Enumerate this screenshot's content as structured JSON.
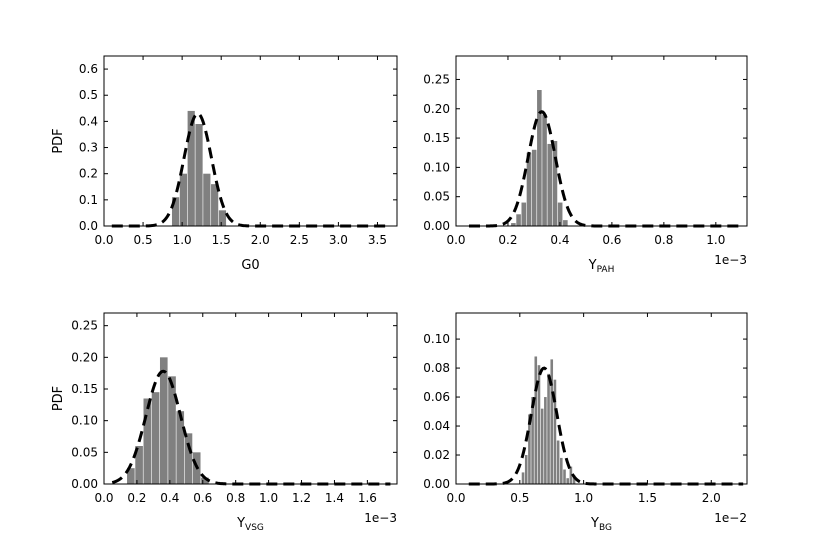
{
  "chart_data": [
    {
      "type": "bar",
      "panel": "top-left",
      "xlabel": "G0",
      "xlabel_sub": "",
      "ylabel": "PDF",
      "offset_text": "",
      "xlim": [
        0,
        3.75
      ],
      "ylim": [
        0,
        0.65
      ],
      "xticks": [
        "0.0",
        "0.5",
        "1.0",
        "1.5",
        "2.0",
        "2.5",
        "3.0",
        "3.5"
      ],
      "xtick_values": [
        0,
        0.5,
        1.0,
        1.5,
        2.0,
        2.5,
        3.0,
        3.5
      ],
      "yticks": [
        "0.0",
        "0.1",
        "0.2",
        "0.3",
        "0.4",
        "0.5",
        "0.6"
      ],
      "ytick_values": [
        0,
        0.1,
        0.2,
        0.3,
        0.4,
        0.5,
        0.6
      ],
      "bins": [
        {
          "x0": 0.87,
          "x1": 0.97,
          "y": 0.11
        },
        {
          "x0": 0.97,
          "x1": 1.07,
          "y": 0.2
        },
        {
          "x0": 1.07,
          "x1": 1.17,
          "y": 0.44
        },
        {
          "x0": 1.17,
          "x1": 1.27,
          "y": 0.39
        },
        {
          "x0": 1.27,
          "x1": 1.37,
          "y": 0.2
        },
        {
          "x0": 1.37,
          "x1": 1.47,
          "y": 0.16
        },
        {
          "x0": 1.47,
          "x1": 1.57,
          "y": 0.06
        }
      ],
      "fit_curve": {
        "mean": 1.2,
        "sigma": 0.175,
        "peak": 0.43,
        "x_range": [
          0.1,
          3.65
        ]
      }
    },
    {
      "type": "bar",
      "panel": "top-right",
      "xlabel": "Y",
      "xlabel_sub": "PAH",
      "ylabel": "",
      "offset_text": "1e−3",
      "xlim": [
        0,
        1.12
      ],
      "ylim": [
        0,
        0.29
      ],
      "xticks": [
        "0.0",
        "0.2",
        "0.4",
        "0.6",
        "0.8",
        "1.0"
      ],
      "xtick_values": [
        0,
        0.2,
        0.4,
        0.6,
        0.8,
        1.0
      ],
      "yticks": [
        "0.00",
        "0.05",
        "0.10",
        "0.15",
        "0.20",
        "0.25"
      ],
      "ytick_values": [
        0,
        0.05,
        0.1,
        0.15,
        0.2,
        0.25
      ],
      "bins": [
        {
          "x0": 0.212,
          "x1": 0.232,
          "y": 0.005
        },
        {
          "x0": 0.232,
          "x1": 0.252,
          "y": 0.02
        },
        {
          "x0": 0.252,
          "x1": 0.272,
          "y": 0.04
        },
        {
          "x0": 0.272,
          "x1": 0.292,
          "y": 0.125
        },
        {
          "x0": 0.292,
          "x1": 0.312,
          "y": 0.13
        },
        {
          "x0": 0.312,
          "x1": 0.332,
          "y": 0.232
        },
        {
          "x0": 0.332,
          "x1": 0.352,
          "y": 0.19
        },
        {
          "x0": 0.352,
          "x1": 0.372,
          "y": 0.14
        },
        {
          "x0": 0.372,
          "x1": 0.392,
          "y": 0.145
        },
        {
          "x0": 0.392,
          "x1": 0.412,
          "y": 0.04
        },
        {
          "x0": 0.412,
          "x1": 0.432,
          "y": 0.01
        }
      ],
      "fit_curve": {
        "mean": 0.33,
        "sigma": 0.052,
        "peak": 0.195,
        "x_range": [
          0.05,
          1.1
        ]
      }
    },
    {
      "type": "bar",
      "panel": "bottom-left",
      "xlabel": "Y",
      "xlabel_sub": "VSG",
      "ylabel": "PDF",
      "offset_text": "1e−3",
      "xlim": [
        0,
        1.78
      ],
      "ylim": [
        0,
        0.27
      ],
      "xticks": [
        "0.0",
        "0.2",
        "0.4",
        "0.6",
        "0.8",
        "1.0",
        "1.2",
        "1.4",
        "1.6"
      ],
      "xtick_values": [
        0,
        0.2,
        0.4,
        0.6,
        0.8,
        1.0,
        1.2,
        1.4,
        1.6
      ],
      "yticks": [
        "0.00",
        "0.05",
        "0.10",
        "0.15",
        "0.20",
        "0.25"
      ],
      "ytick_values": [
        0,
        0.05,
        0.1,
        0.15,
        0.2,
        0.25
      ],
      "bins": [
        {
          "x0": 0.14,
          "x1": 0.19,
          "y": 0.025
        },
        {
          "x0": 0.19,
          "x1": 0.24,
          "y": 0.06
        },
        {
          "x0": 0.24,
          "x1": 0.29,
          "y": 0.135
        },
        {
          "x0": 0.29,
          "x1": 0.34,
          "y": 0.145
        },
        {
          "x0": 0.34,
          "x1": 0.39,
          "y": 0.2
        },
        {
          "x0": 0.39,
          "x1": 0.44,
          "y": 0.17
        },
        {
          "x0": 0.44,
          "x1": 0.49,
          "y": 0.115
        },
        {
          "x0": 0.49,
          "x1": 0.54,
          "y": 0.08
        },
        {
          "x0": 0.54,
          "x1": 0.59,
          "y": 0.05
        },
        {
          "x0": 0.59,
          "x1": 0.64,
          "y": 0.01
        }
      ],
      "fit_curve": {
        "mean": 0.36,
        "sigma": 0.105,
        "peak": 0.178,
        "x_range": [
          0.05,
          1.74
        ]
      }
    },
    {
      "type": "bar",
      "panel": "bottom-right",
      "xlabel": "Y",
      "xlabel_sub": "BG",
      "ylabel": "",
      "offset_text": "1e−2",
      "xlim": [
        0,
        2.28
      ],
      "ylim": [
        0,
        0.118
      ],
      "xticks": [
        "0.0",
        "0.5",
        "1.0",
        "1.5",
        "2.0"
      ],
      "xtick_values": [
        0,
        0.5,
        1.0,
        1.5,
        2.0
      ],
      "yticks": [
        "0.00",
        "0.02",
        "0.04",
        "0.06",
        "0.08",
        "0.10"
      ],
      "ytick_values": [
        0,
        0.02,
        0.04,
        0.06,
        0.08,
        0.1
      ],
      "bins": [
        {
          "x0": 0.515,
          "x1": 0.54,
          "y": 0.008
        },
        {
          "x0": 0.54,
          "x1": 0.565,
          "y": 0.02
        },
        {
          "x0": 0.565,
          "x1": 0.59,
          "y": 0.048
        },
        {
          "x0": 0.59,
          "x1": 0.615,
          "y": 0.06
        },
        {
          "x0": 0.615,
          "x1": 0.64,
          "y": 0.088
        },
        {
          "x0": 0.64,
          "x1": 0.665,
          "y": 0.082
        },
        {
          "x0": 0.665,
          "x1": 0.69,
          "y": 0.052
        },
        {
          "x0": 0.69,
          "x1": 0.715,
          "y": 0.06
        },
        {
          "x0": 0.715,
          "x1": 0.74,
          "y": 0.076
        },
        {
          "x0": 0.74,
          "x1": 0.765,
          "y": 0.086
        },
        {
          "x0": 0.765,
          "x1": 0.79,
          "y": 0.072
        },
        {
          "x0": 0.79,
          "x1": 0.815,
          "y": 0.03
        },
        {
          "x0": 0.815,
          "x1": 0.84,
          "y": 0.018
        },
        {
          "x0": 0.84,
          "x1": 0.865,
          "y": 0.01
        },
        {
          "x0": 0.865,
          "x1": 0.89,
          "y": 0.004
        },
        {
          "x0": 0.89,
          "x1": 0.915,
          "y": 0.012
        },
        {
          "x0": 0.915,
          "x1": 0.94,
          "y": 0.006
        }
      ],
      "fit_curve": {
        "mean": 0.69,
        "sigma": 0.1,
        "peak": 0.08,
        "x_range": [
          0.1,
          2.25
        ]
      }
    }
  ],
  "colors": {
    "bars": "#808080",
    "curve": "#000000",
    "axes": "#000000",
    "background": "#ffffff"
  }
}
